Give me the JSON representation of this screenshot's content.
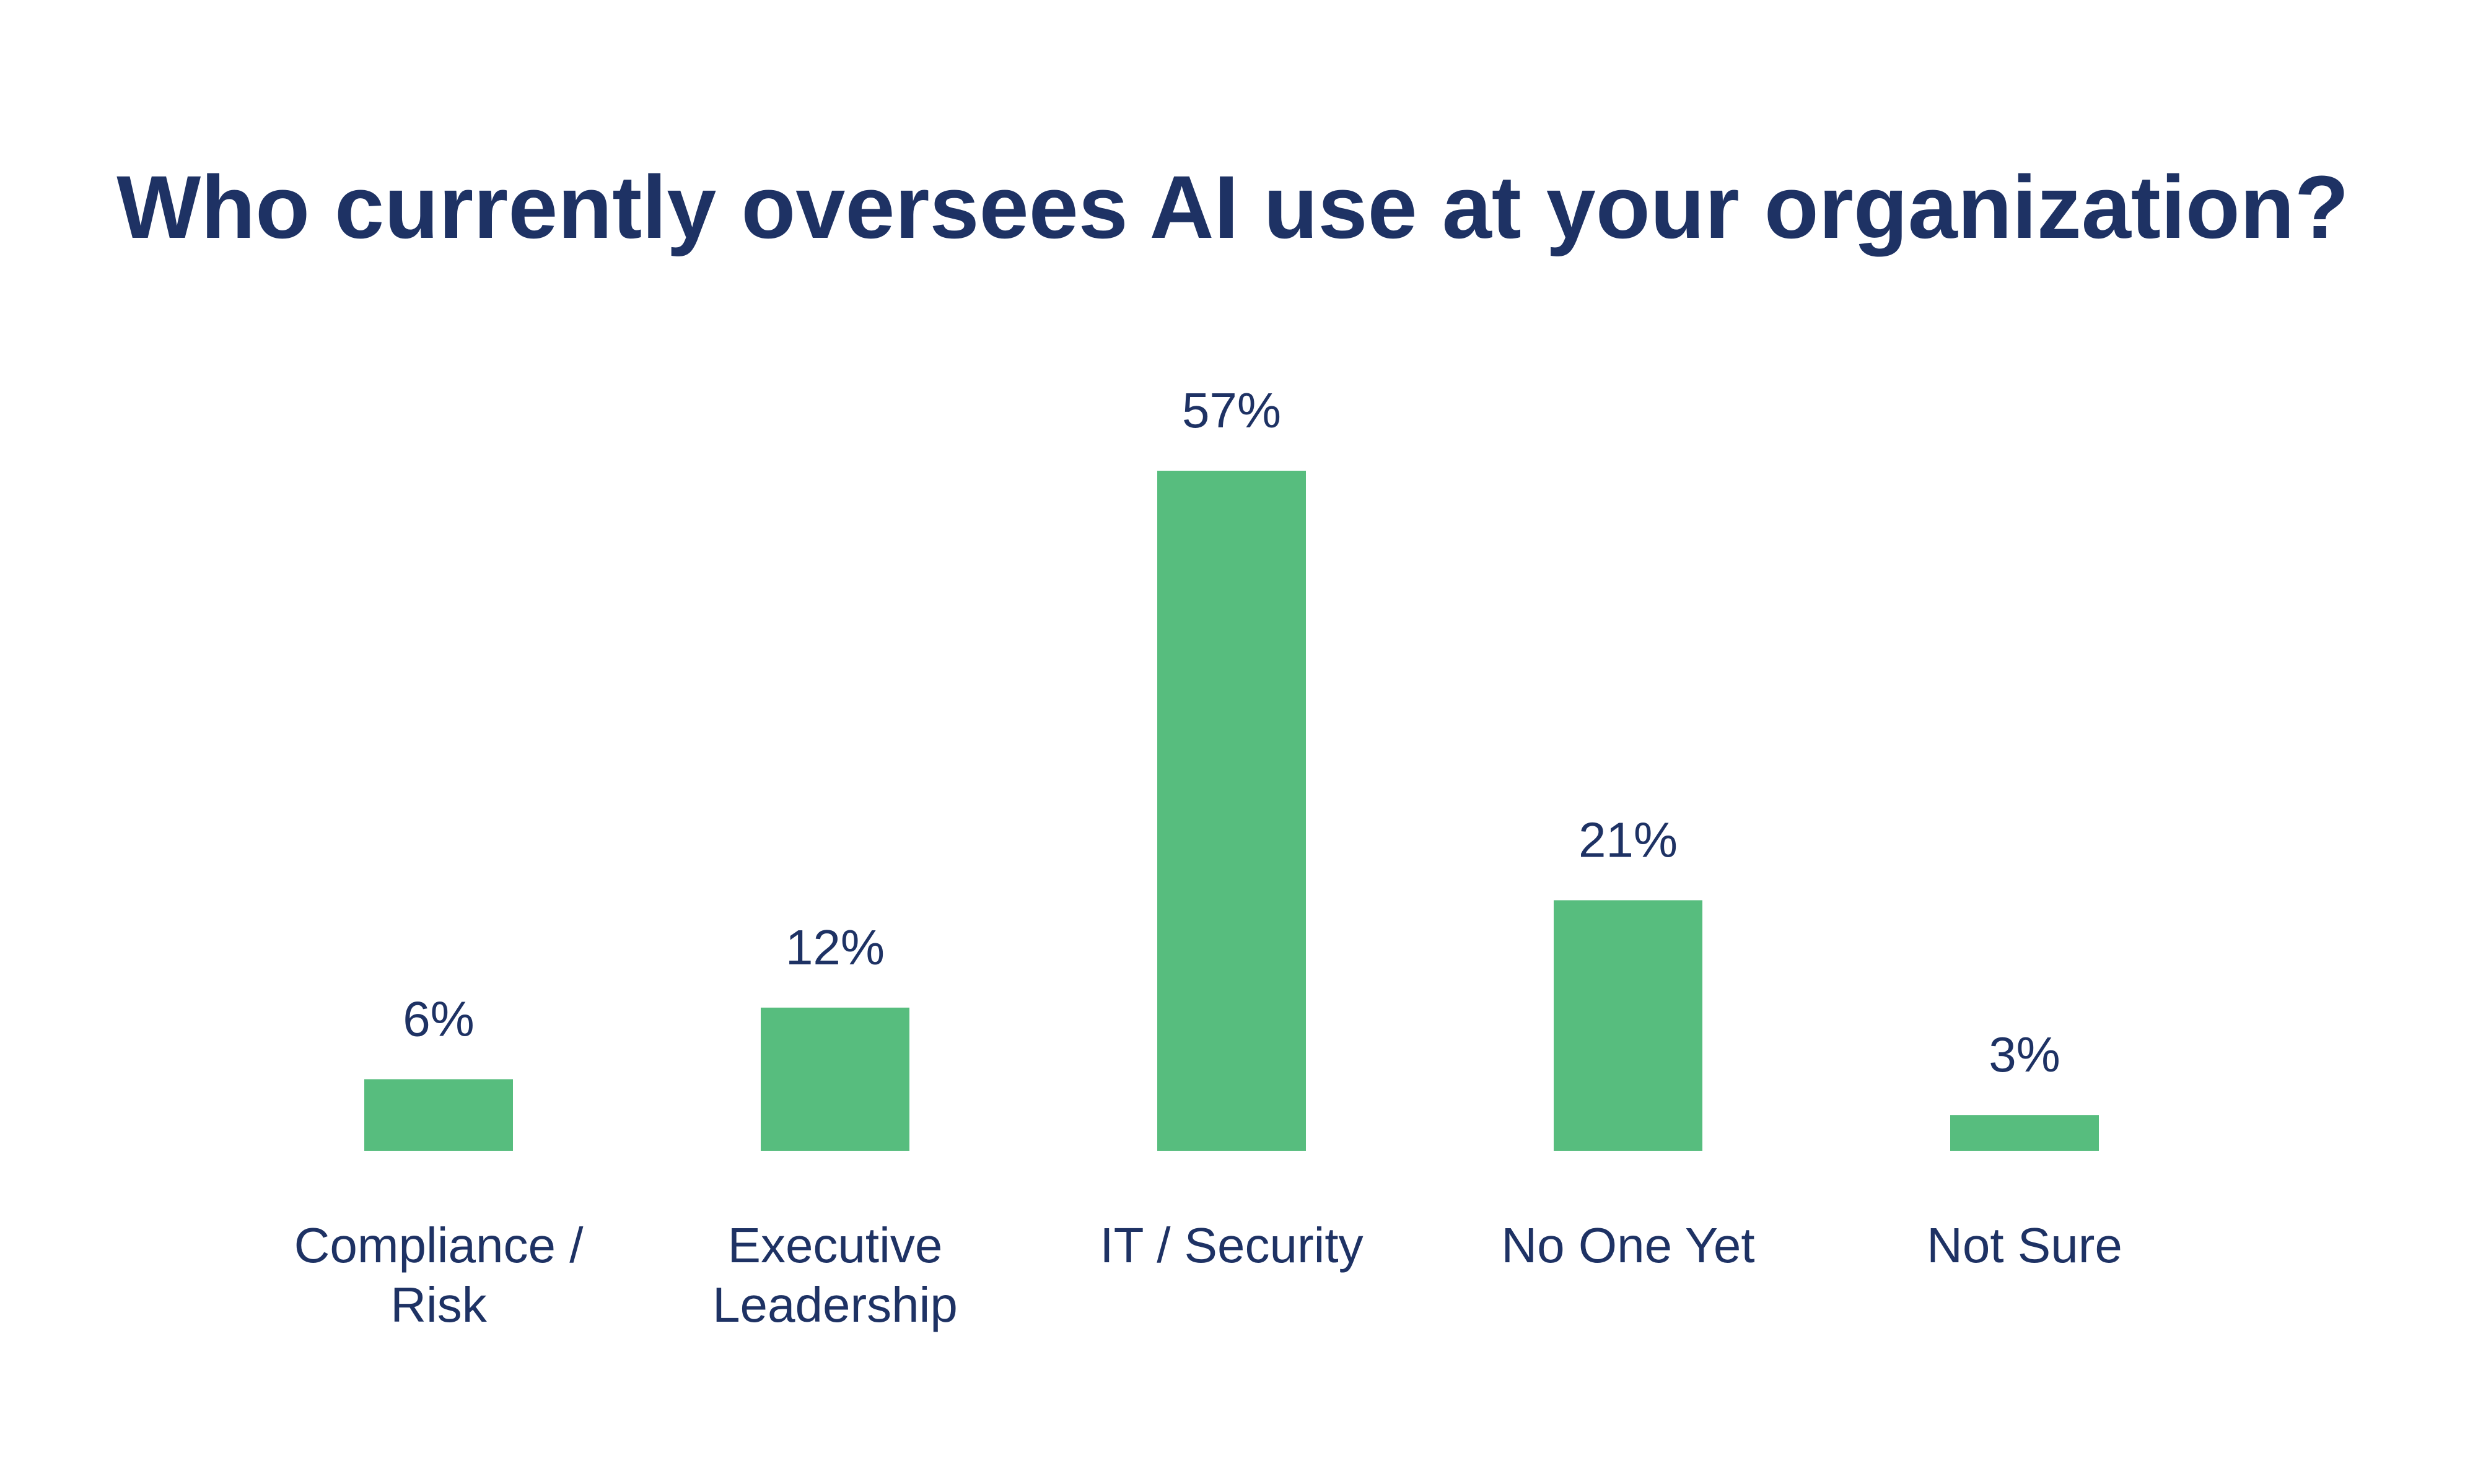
{
  "colors": {
    "bar": "#57bd7e",
    "text": "#1e3264",
    "background": "#ffffff"
  },
  "chart_data": {
    "type": "bar",
    "title": "Who currently oversees AI use at your organization?",
    "xlabel": "",
    "ylabel": "",
    "grid": false,
    "legend": "none",
    "ylim": [
      0,
      57
    ],
    "categories": [
      [
        "Compliance /",
        "Risk"
      ],
      [
        "Executive",
        "Leadership"
      ],
      [
        "IT / Security"
      ],
      [
        "No One Yet"
      ],
      [
        "Not Sure"
      ]
    ],
    "values": [
      6,
      12,
      57,
      21,
      3
    ],
    "value_labels": [
      "6%",
      "12%",
      "57%",
      "21%",
      "3%"
    ]
  }
}
